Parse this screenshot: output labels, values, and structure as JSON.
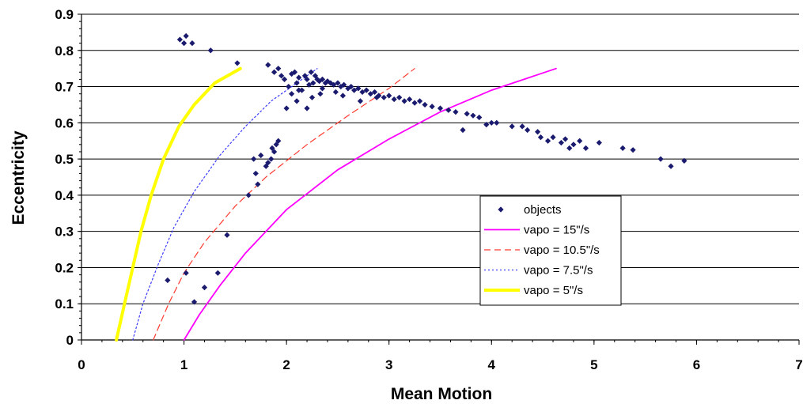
{
  "chart_data": {
    "type": "scatter",
    "title": "",
    "xlabel": "Mean Motion",
    "ylabel": "Eccentricity",
    "xlim": [
      0,
      7
    ],
    "ylim": [
      0,
      0.9
    ],
    "x_ticks": [
      "0",
      "1",
      "2",
      "3",
      "4",
      "5",
      "6",
      "7"
    ],
    "y_ticks": [
      "0",
      "0.1",
      "0.2",
      "0.3",
      "0.4",
      "0.5",
      "0.6",
      "0.7",
      "0.8",
      "0.9"
    ],
    "grid": "horizontal",
    "legend_position": "lower-right",
    "series": [
      {
        "name": "objects",
        "kind": "scatter",
        "color": "#1a1a6e",
        "marker": "diamond",
        "points": [
          [
            0.96,
            0.83
          ],
          [
            1.02,
            0.84
          ],
          [
            1.0,
            0.82
          ],
          [
            1.08,
            0.82
          ],
          [
            1.26,
            0.8
          ],
          [
            1.52,
            0.765
          ],
          [
            1.82,
            0.76
          ],
          [
            1.88,
            0.74
          ],
          [
            1.92,
            0.75
          ],
          [
            1.95,
            0.73
          ],
          [
            1.98,
            0.72
          ],
          [
            2.02,
            0.7
          ],
          [
            2.05,
            0.735
          ],
          [
            2.08,
            0.74
          ],
          [
            2.1,
            0.71
          ],
          [
            2.12,
            0.725
          ],
          [
            2.15,
            0.69
          ],
          [
            2.18,
            0.73
          ],
          [
            2.2,
            0.72
          ],
          [
            2.22,
            0.705
          ],
          [
            2.24,
            0.74
          ],
          [
            2.26,
            0.71
          ],
          [
            2.28,
            0.73
          ],
          [
            2.3,
            0.72
          ],
          [
            2.32,
            0.715
          ],
          [
            2.35,
            0.72
          ],
          [
            2.38,
            0.71
          ],
          [
            2.4,
            0.715
          ],
          [
            2.43,
            0.71
          ],
          [
            2.46,
            0.705
          ],
          [
            2.5,
            0.71
          ],
          [
            2.53,
            0.7
          ],
          [
            2.56,
            0.705
          ],
          [
            2.6,
            0.695
          ],
          [
            2.63,
            0.7
          ],
          [
            2.66,
            0.69
          ],
          [
            2.7,
            0.695
          ],
          [
            2.74,
            0.685
          ],
          [
            2.78,
            0.69
          ],
          [
            2.82,
            0.68
          ],
          [
            2.86,
            0.685
          ],
          [
            2.9,
            0.675
          ],
          [
            2.95,
            0.67
          ],
          [
            3.0,
            0.675
          ],
          [
            3.05,
            0.665
          ],
          [
            3.1,
            0.67
          ],
          [
            3.15,
            0.66
          ],
          [
            3.2,
            0.665
          ],
          [
            3.25,
            0.655
          ],
          [
            3.3,
            0.66
          ],
          [
            3.35,
            0.65
          ],
          [
            3.42,
            0.645
          ],
          [
            3.5,
            0.64
          ],
          [
            3.58,
            0.635
          ],
          [
            3.65,
            0.63
          ],
          [
            2.0,
            0.64
          ],
          [
            2.1,
            0.66
          ],
          [
            2.05,
            0.68
          ],
          [
            2.25,
            0.67
          ],
          [
            2.55,
            0.675
          ],
          [
            2.72,
            0.66
          ],
          [
            2.88,
            0.67
          ],
          [
            2.12,
            0.69
          ],
          [
            2.35,
            0.695
          ],
          [
            2.48,
            0.685
          ],
          [
            3.72,
            0.58
          ],
          [
            3.76,
            0.625
          ],
          [
            3.82,
            0.62
          ],
          [
            3.88,
            0.615
          ],
          [
            3.95,
            0.595
          ],
          [
            4.0,
            0.6
          ],
          [
            4.05,
            0.6
          ],
          [
            4.2,
            0.59
          ],
          [
            4.3,
            0.59
          ],
          [
            4.35,
            0.58
          ],
          [
            4.45,
            0.575
          ],
          [
            4.48,
            0.56
          ],
          [
            4.55,
            0.55
          ],
          [
            4.6,
            0.56
          ],
          [
            4.68,
            0.545
          ],
          [
            4.72,
            0.555
          ],
          [
            4.76,
            0.53
          ],
          [
            4.8,
            0.54
          ],
          [
            4.86,
            0.55
          ],
          [
            4.92,
            0.53
          ],
          [
            5.05,
            0.545
          ],
          [
            5.28,
            0.53
          ],
          [
            5.38,
            0.525
          ],
          [
            5.65,
            0.5
          ],
          [
            5.75,
            0.48
          ],
          [
            5.88,
            0.495
          ],
          [
            2.2,
            0.64
          ],
          [
            2.33,
            0.68
          ],
          [
            1.63,
            0.4
          ],
          [
            1.7,
            0.46
          ],
          [
            1.72,
            0.43
          ],
          [
            1.75,
            0.51
          ],
          [
            1.8,
            0.48
          ],
          [
            1.82,
            0.49
          ],
          [
            1.85,
            0.5
          ],
          [
            1.86,
            0.53
          ],
          [
            1.88,
            0.52
          ],
          [
            1.9,
            0.54
          ],
          [
            1.92,
            0.55
          ],
          [
            1.68,
            0.5
          ],
          [
            0.84,
            0.165
          ],
          [
            1.02,
            0.185
          ],
          [
            1.1,
            0.105
          ],
          [
            1.2,
            0.145
          ],
          [
            1.33,
            0.185
          ],
          [
            1.42,
            0.29
          ]
        ]
      },
      {
        "name": "vapo = 15\"/s",
        "kind": "line",
        "color": "#ff00ff",
        "dash": "solid",
        "width": 1.8,
        "points": [
          [
            1.0,
            0.0
          ],
          [
            1.15,
            0.07
          ],
          [
            1.35,
            0.15
          ],
          [
            1.6,
            0.24
          ],
          [
            2.0,
            0.36
          ],
          [
            2.5,
            0.47
          ],
          [
            3.0,
            0.555
          ],
          [
            3.5,
            0.63
          ],
          [
            4.0,
            0.69
          ],
          [
            4.63,
            0.75
          ]
        ]
      },
      {
        "name": "vapo = 10.5\"/s",
        "kind": "line",
        "color": "#ff3b30",
        "dash": "dashed",
        "width": 1.2,
        "points": [
          [
            0.7,
            0.0
          ],
          [
            0.85,
            0.1
          ],
          [
            1.0,
            0.185
          ],
          [
            1.2,
            0.27
          ],
          [
            1.5,
            0.37
          ],
          [
            1.8,
            0.45
          ],
          [
            2.2,
            0.54
          ],
          [
            2.6,
            0.62
          ],
          [
            3.0,
            0.695
          ],
          [
            3.25,
            0.75
          ]
        ]
      },
      {
        "name": "vapo = 7.5\"/s",
        "kind": "line",
        "color": "#3b3bff",
        "dash": "dotted",
        "width": 1.2,
        "points": [
          [
            0.5,
            0.0
          ],
          [
            0.6,
            0.1
          ],
          [
            0.75,
            0.21
          ],
          [
            0.9,
            0.31
          ],
          [
            1.1,
            0.41
          ],
          [
            1.35,
            0.51
          ],
          [
            1.6,
            0.59
          ],
          [
            1.85,
            0.66
          ],
          [
            2.3,
            0.75
          ]
        ]
      },
      {
        "name": "vapo = 5\"/s",
        "kind": "line",
        "color": "#ffff00",
        "dash": "solid",
        "width": 4,
        "points": [
          [
            0.34,
            0.0
          ],
          [
            0.42,
            0.1
          ],
          [
            0.5,
            0.2
          ],
          [
            0.58,
            0.3
          ],
          [
            0.68,
            0.4
          ],
          [
            0.8,
            0.5
          ],
          [
            0.95,
            0.59
          ],
          [
            1.1,
            0.65
          ],
          [
            1.3,
            0.71
          ],
          [
            1.55,
            0.75
          ]
        ]
      }
    ]
  }
}
